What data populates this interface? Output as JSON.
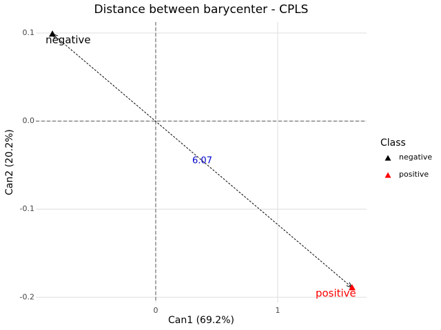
{
  "chart_data": {
    "type": "scatter",
    "title": "Distance between barycenter - CPLS",
    "x_label": "Can1 (69.2%)",
    "y_label": "Can2 (20.2%)",
    "xlim": [
      -0.983,
      1.729
    ],
    "ylim": [
      -0.206,
      0.1125
    ],
    "xticks": [
      0,
      1
    ],
    "yticks": [
      0.1,
      {
        "value": 0,
        "label": "0.0"
      },
      -0.1,
      -0.2
    ],
    "grid": true,
    "reference_lines": {
      "x": 0,
      "y": 0
    },
    "legend_title": "Class",
    "legend_position": "right",
    "series": [
      {
        "name": "negative",
        "color": "#000000",
        "x": [
          -0.847
        ],
        "y": [
          0.099
        ]
      },
      {
        "name": "positive",
        "color": "#ff0000",
        "x": [
          1.61
        ],
        "y": [
          -0.189
        ]
      }
    ],
    "annotation": {
      "text": "6.07",
      "color": "#0000cc"
    }
  }
}
